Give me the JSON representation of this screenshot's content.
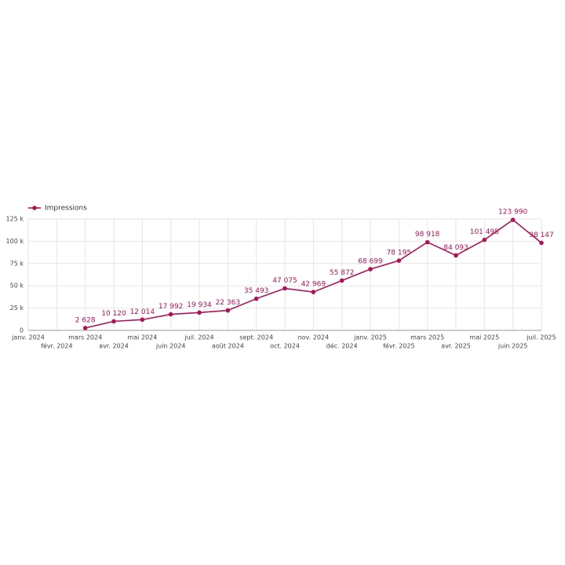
{
  "chart_data": {
    "type": "line",
    "categories": [
      "janv. 2024",
      "févr. 2024",
      "mars 2024",
      "avr. 2024",
      "mai 2024",
      "juin 2024",
      "juil. 2024",
      "août 2024",
      "sept. 2024",
      "oct. 2024",
      "nov. 2024",
      "déc. 2024",
      "janv. 2025",
      "févr. 2025",
      "mars 2025",
      "avr. 2025",
      "mai 2025",
      "juin 2025",
      "juil. 2025"
    ],
    "series": [
      {
        "name": "Impressions",
        "color": "#ad1457",
        "values": [
          null,
          null,
          2628,
          10120,
          12014,
          17992,
          19934,
          22363,
          35493,
          47075,
          42969,
          55872,
          68699,
          78195,
          98918,
          84093,
          101495,
          123990,
          98147
        ],
        "value_labels": [
          null,
          null,
          "2 628",
          "10 120",
          "12 014",
          "17 992",
          "19 934",
          "22 363",
          "35 493",
          "47 075",
          "42 969",
          "55 872",
          "68 699",
          "78 195",
          "98 918",
          "84 093",
          "101 495",
          "123 990",
          "98 147"
        ]
      }
    ],
    "ylim": [
      0,
      125000
    ],
    "yticks": [
      0,
      {
        "value": 25000,
        "label": "25 k"
      },
      {
        "value": 50000,
        "label": "50 k"
      },
      {
        "value": 75000,
        "label": "75 k"
      },
      {
        "value": 100000,
        "label": "100 k"
      },
      {
        "value": 125000,
        "label": "125 k"
      }
    ],
    "grid": true,
    "legend": "top-left"
  }
}
